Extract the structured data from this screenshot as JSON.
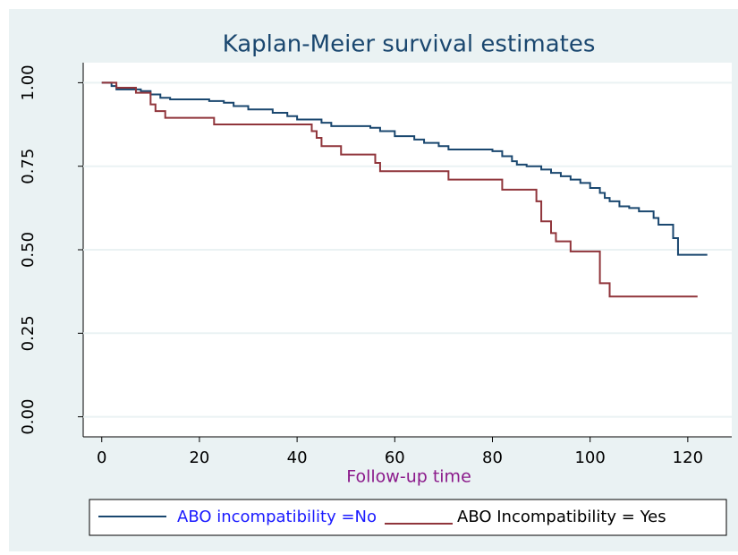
{
  "chart_data": {
    "type": "line",
    "drawstyle": "steps-post",
    "title": "Kaplan-Meier survival estimates",
    "xlabel": "Follow-up  time",
    "xlim": [
      -3.8,
      129
    ],
    "ylim": [
      -0.06,
      1.06
    ],
    "xticks": [
      0,
      20,
      40,
      60,
      80,
      100,
      120
    ],
    "yticks": [
      {
        "value": 0,
        "label": "0.00"
      },
      0.25,
      {
        "value": 0.5,
        "label": "0.50"
      },
      0.75,
      {
        "value": 1,
        "label": "1.00"
      }
    ],
    "grid": true,
    "legend": "bottom",
    "series": [
      {
        "name": "ABO  incompatibility =No",
        "color": "#1a476f",
        "label_color": "#1a1aff",
        "x": [
          0,
          2,
          3,
          8,
          10,
          12,
          14,
          22,
          25,
          27,
          30,
          35,
          38,
          40,
          45,
          47,
          55,
          57,
          60,
          64,
          66,
          69,
          71,
          80,
          82,
          84,
          85,
          87,
          90,
          92,
          94,
          96,
          98,
          100,
          102,
          103,
          104,
          106,
          108,
          110,
          113,
          114,
          117,
          118,
          124
        ],
        "values": [
          1.0,
          0.99,
          0.98,
          0.975,
          0.965,
          0.955,
          0.95,
          0.945,
          0.94,
          0.93,
          0.92,
          0.91,
          0.9,
          0.89,
          0.88,
          0.87,
          0.865,
          0.855,
          0.84,
          0.83,
          0.82,
          0.81,
          0.8,
          0.795,
          0.78,
          0.765,
          0.755,
          0.75,
          0.74,
          0.73,
          0.72,
          0.71,
          0.7,
          0.685,
          0.67,
          0.655,
          0.645,
          0.63,
          0.625,
          0.615,
          0.595,
          0.575,
          0.535,
          0.485,
          0.485
        ]
      },
      {
        "name": "ABO  Incompatibility = Yes",
        "color": "#90353b",
        "label_color": "#000000",
        "x": [
          0,
          3,
          7,
          10,
          11,
          13,
          23,
          43,
          44,
          45,
          49,
          56,
          57,
          71,
          82,
          89,
          90,
          92,
          93,
          96,
          102,
          104,
          122
        ],
        "values": [
          1.0,
          0.985,
          0.97,
          0.935,
          0.915,
          0.895,
          0.875,
          0.855,
          0.835,
          0.81,
          0.785,
          0.76,
          0.735,
          0.71,
          0.68,
          0.645,
          0.585,
          0.55,
          0.525,
          0.495,
          0.4,
          0.36,
          0.36
        ]
      }
    ]
  }
}
